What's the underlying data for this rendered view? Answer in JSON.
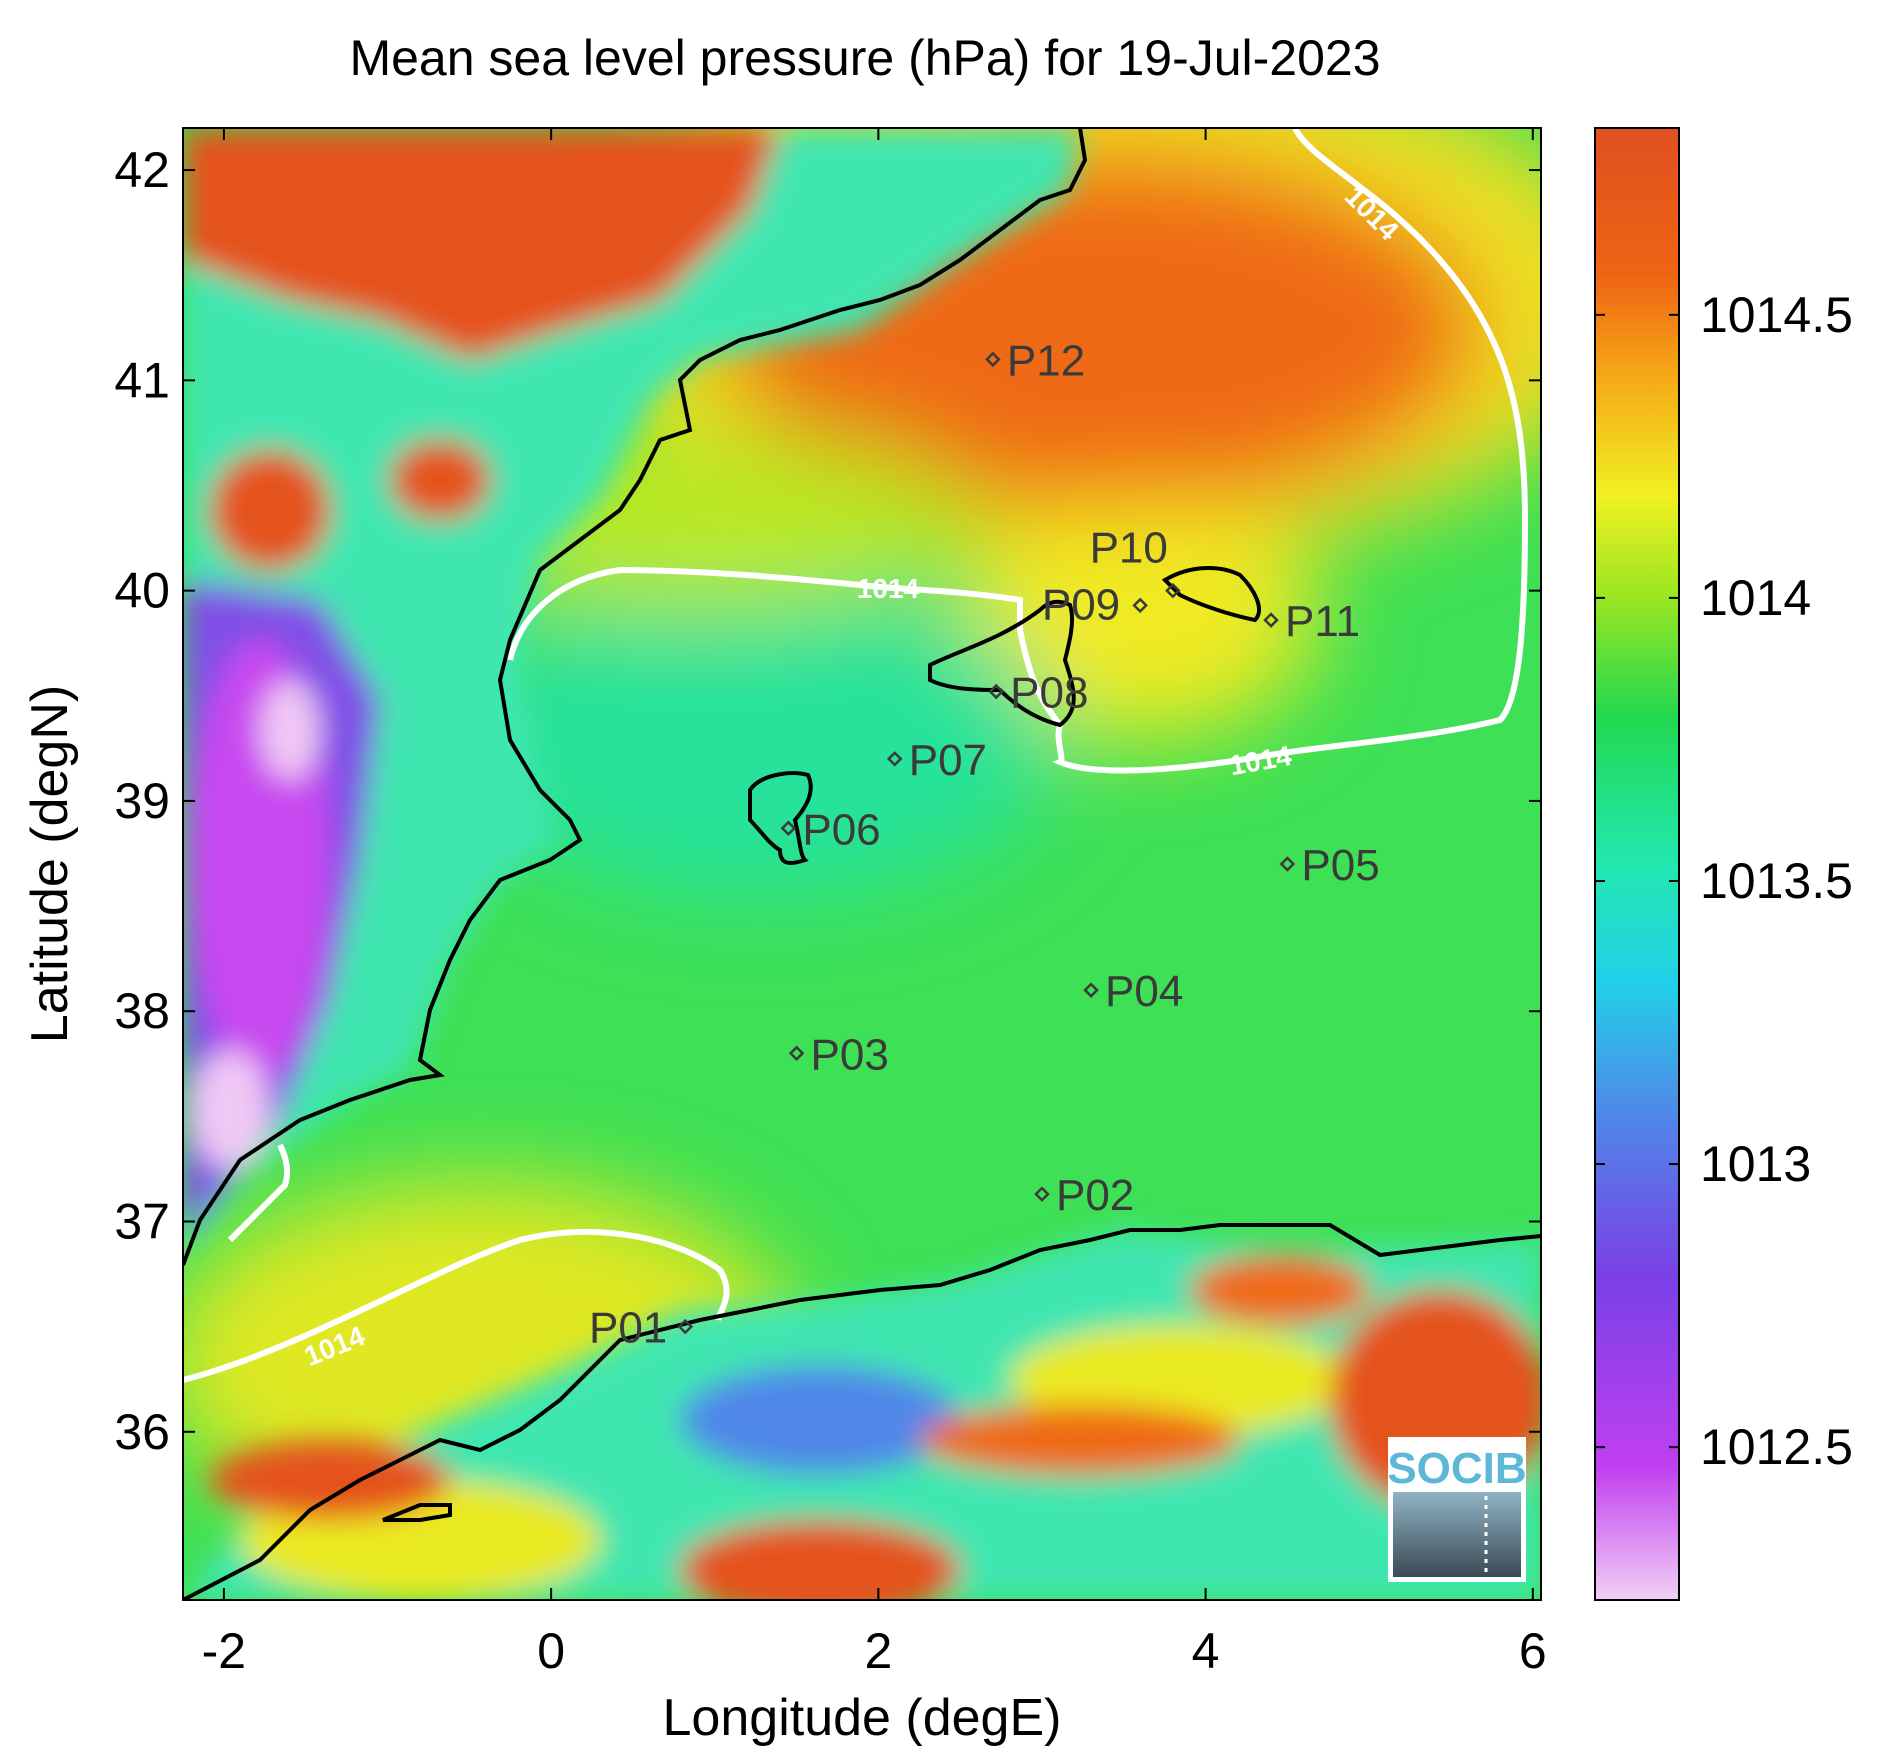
{
  "chart_data": {
    "type": "heatmap",
    "title": "Mean sea level pressure (hPa) for 19-Jul-2023",
    "xlabel": "Longitude (degE)",
    "ylabel": "Latitude (degN)",
    "xlim": [
      -2.25,
      6.05
    ],
    "ylim": [
      35.2,
      42.2
    ],
    "xticks": [
      -2,
      0,
      2,
      4,
      6
    ],
    "yticks": [
      36,
      37,
      38,
      39,
      40,
      41,
      42
    ],
    "colorbar": {
      "range": [
        1012.23,
        1014.83
      ],
      "ticks": [
        "1012.5",
        "1013",
        "1013.5",
        "1014",
        "1014.5"
      ],
      "tick_values": [
        1012.5,
        1013,
        1013.5,
        1014,
        1014.5
      ],
      "colors": [
        "#f2d0f5",
        "#c040f0",
        "#7a40e6",
        "#4f88e8",
        "#22d0e8",
        "#22e8b0",
        "#22d850",
        "#99e622",
        "#f0f022",
        "#f5aa16",
        "#ef6414",
        "#e05020"
      ]
    },
    "contours": [
      {
        "level": 1014,
        "label": "1014"
      }
    ],
    "stations": [
      {
        "name": "P01",
        "lon": 0.82,
        "lat": 36.5
      },
      {
        "name": "P02",
        "lon": 3.0,
        "lat": 37.13
      },
      {
        "name": "P03",
        "lon": 1.5,
        "lat": 37.8
      },
      {
        "name": "P04",
        "lon": 3.3,
        "lat": 38.1
      },
      {
        "name": "P05",
        "lon": 4.5,
        "lat": 38.7
      },
      {
        "name": "P06",
        "lon": 1.45,
        "lat": 38.87
      },
      {
        "name": "P07",
        "lon": 2.1,
        "lat": 39.2
      },
      {
        "name": "P08",
        "lon": 2.72,
        "lat": 39.52
      },
      {
        "name": "P09",
        "lon": 3.6,
        "lat": 39.93
      },
      {
        "name": "P10",
        "lon": 3.8,
        "lat": 40.0
      },
      {
        "name": "P11",
        "lon": 4.4,
        "lat": 39.86
      },
      {
        "name": "P12",
        "lon": 2.7,
        "lat": 41.1
      }
    ],
    "grid": false
  },
  "logo": {
    "text": "SOCIB"
  }
}
